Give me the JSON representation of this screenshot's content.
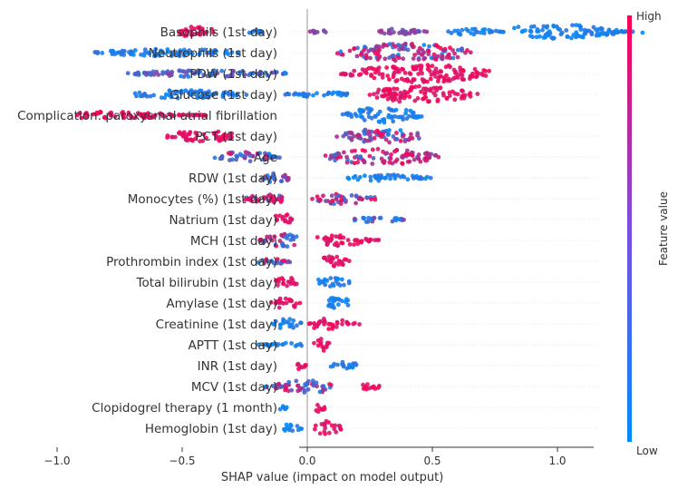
{
  "chart_data": {
    "type": "scatter",
    "subtype": "shap-beeswarm",
    "title": "",
    "xlabel": "SHAP value (impact on model output)",
    "xlim": [
      -1.1,
      1.4
    ],
    "xticks": [
      "−1.0",
      "−0.5",
      "0.0",
      "0.5",
      "1.0"
    ],
    "xtick_values": [
      -1.0,
      -0.5,
      0.0,
      0.5,
      1.0
    ],
    "colorbar": {
      "label": "Feature value",
      "high": "High",
      "low": "Low"
    },
    "colors": {
      "low": "#008bfb",
      "high": "#ff0052",
      "zero_line": "#999999",
      "row_line": "#cccccc"
    },
    "features": [
      {
        "name": "Basophils (1st day)",
        "clusters": [
          {
            "min": -0.55,
            "max": -0.35,
            "center": -0.45,
            "spread": 0.55,
            "color": "high"
          },
          {
            "min": -0.25,
            "max": -0.15,
            "center": -0.2,
            "spread": 0.2,
            "color": "low"
          },
          {
            "min": 0.0,
            "max": 0.1,
            "center": 0.05,
            "spread": 0.2,
            "color": "mid"
          },
          {
            "min": 0.25,
            "max": 0.5,
            "center": 0.35,
            "spread": 0.35,
            "color": "mid"
          },
          {
            "min": 0.55,
            "max": 0.8,
            "center": 0.65,
            "spread": 0.35,
            "color": "low"
          },
          {
            "min": 0.8,
            "max": 1.35,
            "center": 1.0,
            "spread": 0.8,
            "color": "low"
          }
        ]
      },
      {
        "name": "Neutrophils (1st day)",
        "clusters": [
          {
            "min": -0.9,
            "max": -0.25,
            "center": -0.55,
            "spread": 0.4,
            "color": "low"
          },
          {
            "min": 0.1,
            "max": 0.7,
            "center": 0.4,
            "spread": 1.0,
            "color": "mixed-high"
          }
        ]
      },
      {
        "name": "PDW (1st day)",
        "clusters": [
          {
            "min": -0.75,
            "max": -0.05,
            "center": -0.4,
            "spread": 0.4,
            "color": "low-mid"
          },
          {
            "min": 0.1,
            "max": 0.75,
            "center": 0.45,
            "spread": 1.0,
            "color": "high"
          }
        ]
      },
      {
        "name": "Glucose (1st day)",
        "clusters": [
          {
            "min": -0.75,
            "max": -0.2,
            "center": -0.5,
            "spread": 0.45,
            "color": "low"
          },
          {
            "min": -0.1,
            "max": 0.2,
            "center": 0.05,
            "spread": 0.3,
            "color": "low"
          },
          {
            "min": 0.2,
            "max": 0.7,
            "center": 0.45,
            "spread": 0.9,
            "color": "high"
          }
        ]
      },
      {
        "name": "Complication: paroxysmal atrial fibrillation",
        "clusters": [
          {
            "min": -0.97,
            "max": -0.35,
            "center": -0.8,
            "spread": 0.4,
            "color": "high"
          },
          {
            "min": 0.13,
            "max": 0.48,
            "center": 0.3,
            "spread": 0.85,
            "color": "low"
          }
        ]
      },
      {
        "name": "PCT (1st day)",
        "clusters": [
          {
            "min": -0.58,
            "max": -0.25,
            "center": -0.42,
            "spread": 0.6,
            "color": "high"
          },
          {
            "min": 0.1,
            "max": 0.48,
            "center": 0.3,
            "spread": 0.8,
            "color": "mixed"
          }
        ]
      },
      {
        "name": "Age",
        "clusters": [
          {
            "min": -0.4,
            "max": -0.1,
            "center": -0.25,
            "spread": 0.6,
            "color": "mixed-low"
          },
          {
            "min": 0.05,
            "max": 0.55,
            "center": 0.3,
            "spread": 0.9,
            "color": "mixed-high"
          }
        ]
      },
      {
        "name": "RDW (1st day)",
        "clusters": [
          {
            "min": -0.2,
            "max": -0.05,
            "center": -0.12,
            "spread": 0.55,
            "color": "mixed"
          },
          {
            "min": 0.15,
            "max": 0.52,
            "center": 0.32,
            "spread": 0.35,
            "color": "low"
          }
        ]
      },
      {
        "name": "Monocytes (%) (1st day)",
        "clusters": [
          {
            "min": -0.28,
            "max": -0.05,
            "center": -0.15,
            "spread": 0.45,
            "color": "mixed-high"
          },
          {
            "min": 0.0,
            "max": 0.28,
            "center": 0.15,
            "spread": 0.65,
            "color": "mixed"
          }
        ]
      },
      {
        "name": "Natrium (1st day)",
        "clusters": [
          {
            "min": -0.14,
            "max": -0.05,
            "center": -0.1,
            "spread": 0.7,
            "color": "high"
          },
          {
            "min": 0.18,
            "max": 0.4,
            "center": 0.28,
            "spread": 0.35,
            "color": "low-mid"
          }
        ]
      },
      {
        "name": "MCH (1st day)",
        "clusters": [
          {
            "min": -0.22,
            "max": -0.02,
            "center": -0.1,
            "spread": 0.7,
            "color": "mixed-low"
          },
          {
            "min": 0.02,
            "max": 0.3,
            "center": 0.12,
            "spread": 0.6,
            "color": "high"
          }
        ]
      },
      {
        "name": "Prothrombin index (1st day)",
        "clusters": [
          {
            "min": -0.22,
            "max": -0.04,
            "center": -0.13,
            "spread": 0.35,
            "color": "mixed"
          },
          {
            "min": 0.04,
            "max": 0.2,
            "center": 0.1,
            "spread": 0.55,
            "color": "high"
          }
        ]
      },
      {
        "name": "Total bilirubin (1st day)",
        "clusters": [
          {
            "min": -0.14,
            "max": -0.02,
            "center": -0.08,
            "spread": 0.6,
            "color": "high"
          },
          {
            "min": 0.03,
            "max": 0.18,
            "center": 0.1,
            "spread": 0.6,
            "color": "low"
          }
        ]
      },
      {
        "name": "Amylase (1st day)",
        "clusters": [
          {
            "min": -0.15,
            "max": -0.02,
            "center": -0.08,
            "spread": 0.7,
            "color": "high"
          },
          {
            "min": 0.05,
            "max": 0.2,
            "center": 0.12,
            "spread": 0.6,
            "color": "low"
          }
        ]
      },
      {
        "name": "Creatinine (1st day)",
        "clusters": [
          {
            "min": -0.15,
            "max": -0.02,
            "center": -0.08,
            "spread": 0.6,
            "color": "low"
          },
          {
            "min": 0.0,
            "max": 0.22,
            "center": 0.08,
            "spread": 0.6,
            "color": "high"
          }
        ]
      },
      {
        "name": "APTT (1st day)",
        "clusters": [
          {
            "min": -0.22,
            "max": 0.0,
            "center": -0.08,
            "spread": 0.2,
            "color": "low"
          },
          {
            "min": 0.02,
            "max": 0.1,
            "center": 0.06,
            "spread": 0.65,
            "color": "high"
          }
        ]
      },
      {
        "name": "INR (1st day)",
        "clusters": [
          {
            "min": -0.05,
            "max": 0.0,
            "center": -0.03,
            "spread": 0.6,
            "color": "high"
          },
          {
            "min": 0.08,
            "max": 0.22,
            "center": 0.15,
            "spread": 0.4,
            "color": "low"
          }
        ]
      },
      {
        "name": "MCV (1st day)",
        "clusters": [
          {
            "min": -0.18,
            "max": 0.15,
            "center": 0.0,
            "spread": 0.7,
            "color": "mixed-low"
          },
          {
            "min": 0.2,
            "max": 0.3,
            "center": 0.25,
            "spread": 0.45,
            "color": "high"
          }
        ]
      },
      {
        "name": "Clopidogrel therapy (1 month)",
        "clusters": [
          {
            "min": -0.12,
            "max": -0.08,
            "center": -0.1,
            "spread": 0.3,
            "color": "low"
          },
          {
            "min": 0.03,
            "max": 0.08,
            "center": 0.05,
            "spread": 0.6,
            "color": "high"
          }
        ]
      },
      {
        "name": "Hemoglobin (1st day)",
        "clusters": [
          {
            "min": -0.1,
            "max": -0.02,
            "center": -0.06,
            "spread": 0.7,
            "color": "low"
          },
          {
            "min": 0.02,
            "max": 0.14,
            "center": 0.08,
            "spread": 0.8,
            "color": "high"
          }
        ]
      }
    ]
  }
}
